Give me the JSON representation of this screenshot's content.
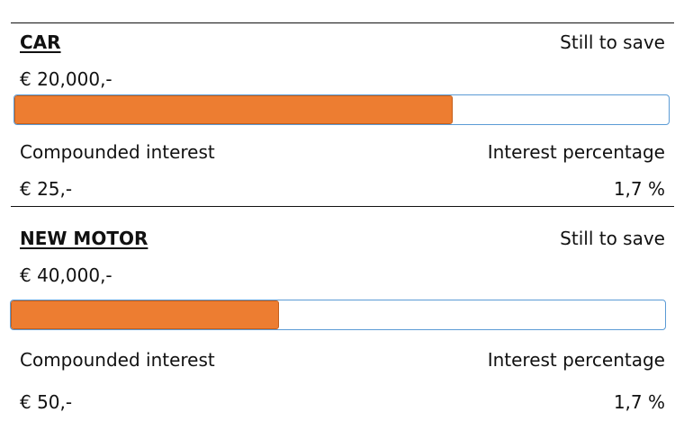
{
  "goals": [
    {
      "title": "CAR",
      "still_to_save_label": "Still to save",
      "amount": "€ 20,000,-",
      "progress_fraction": 0.67,
      "compounded_interest_label": "Compounded interest",
      "interest_percentage_label": "Interest percentage",
      "compounded_interest_value": "€ 25,-",
      "interest_percentage_value": "1,7 %"
    },
    {
      "title": "NEW MOTOR",
      "still_to_save_label": "Still to save",
      "amount": "€ 40,000,-",
      "progress_fraction": 0.41,
      "compounded_interest_label": "Compounded interest",
      "interest_percentage_label": "Interest percentage",
      "compounded_interest_value": "€ 50,-",
      "interest_percentage_value": "1,7 %"
    }
  ],
  "colors": {
    "progress_fill": "#ed7d31",
    "progress_border": "#5b9bd5"
  }
}
